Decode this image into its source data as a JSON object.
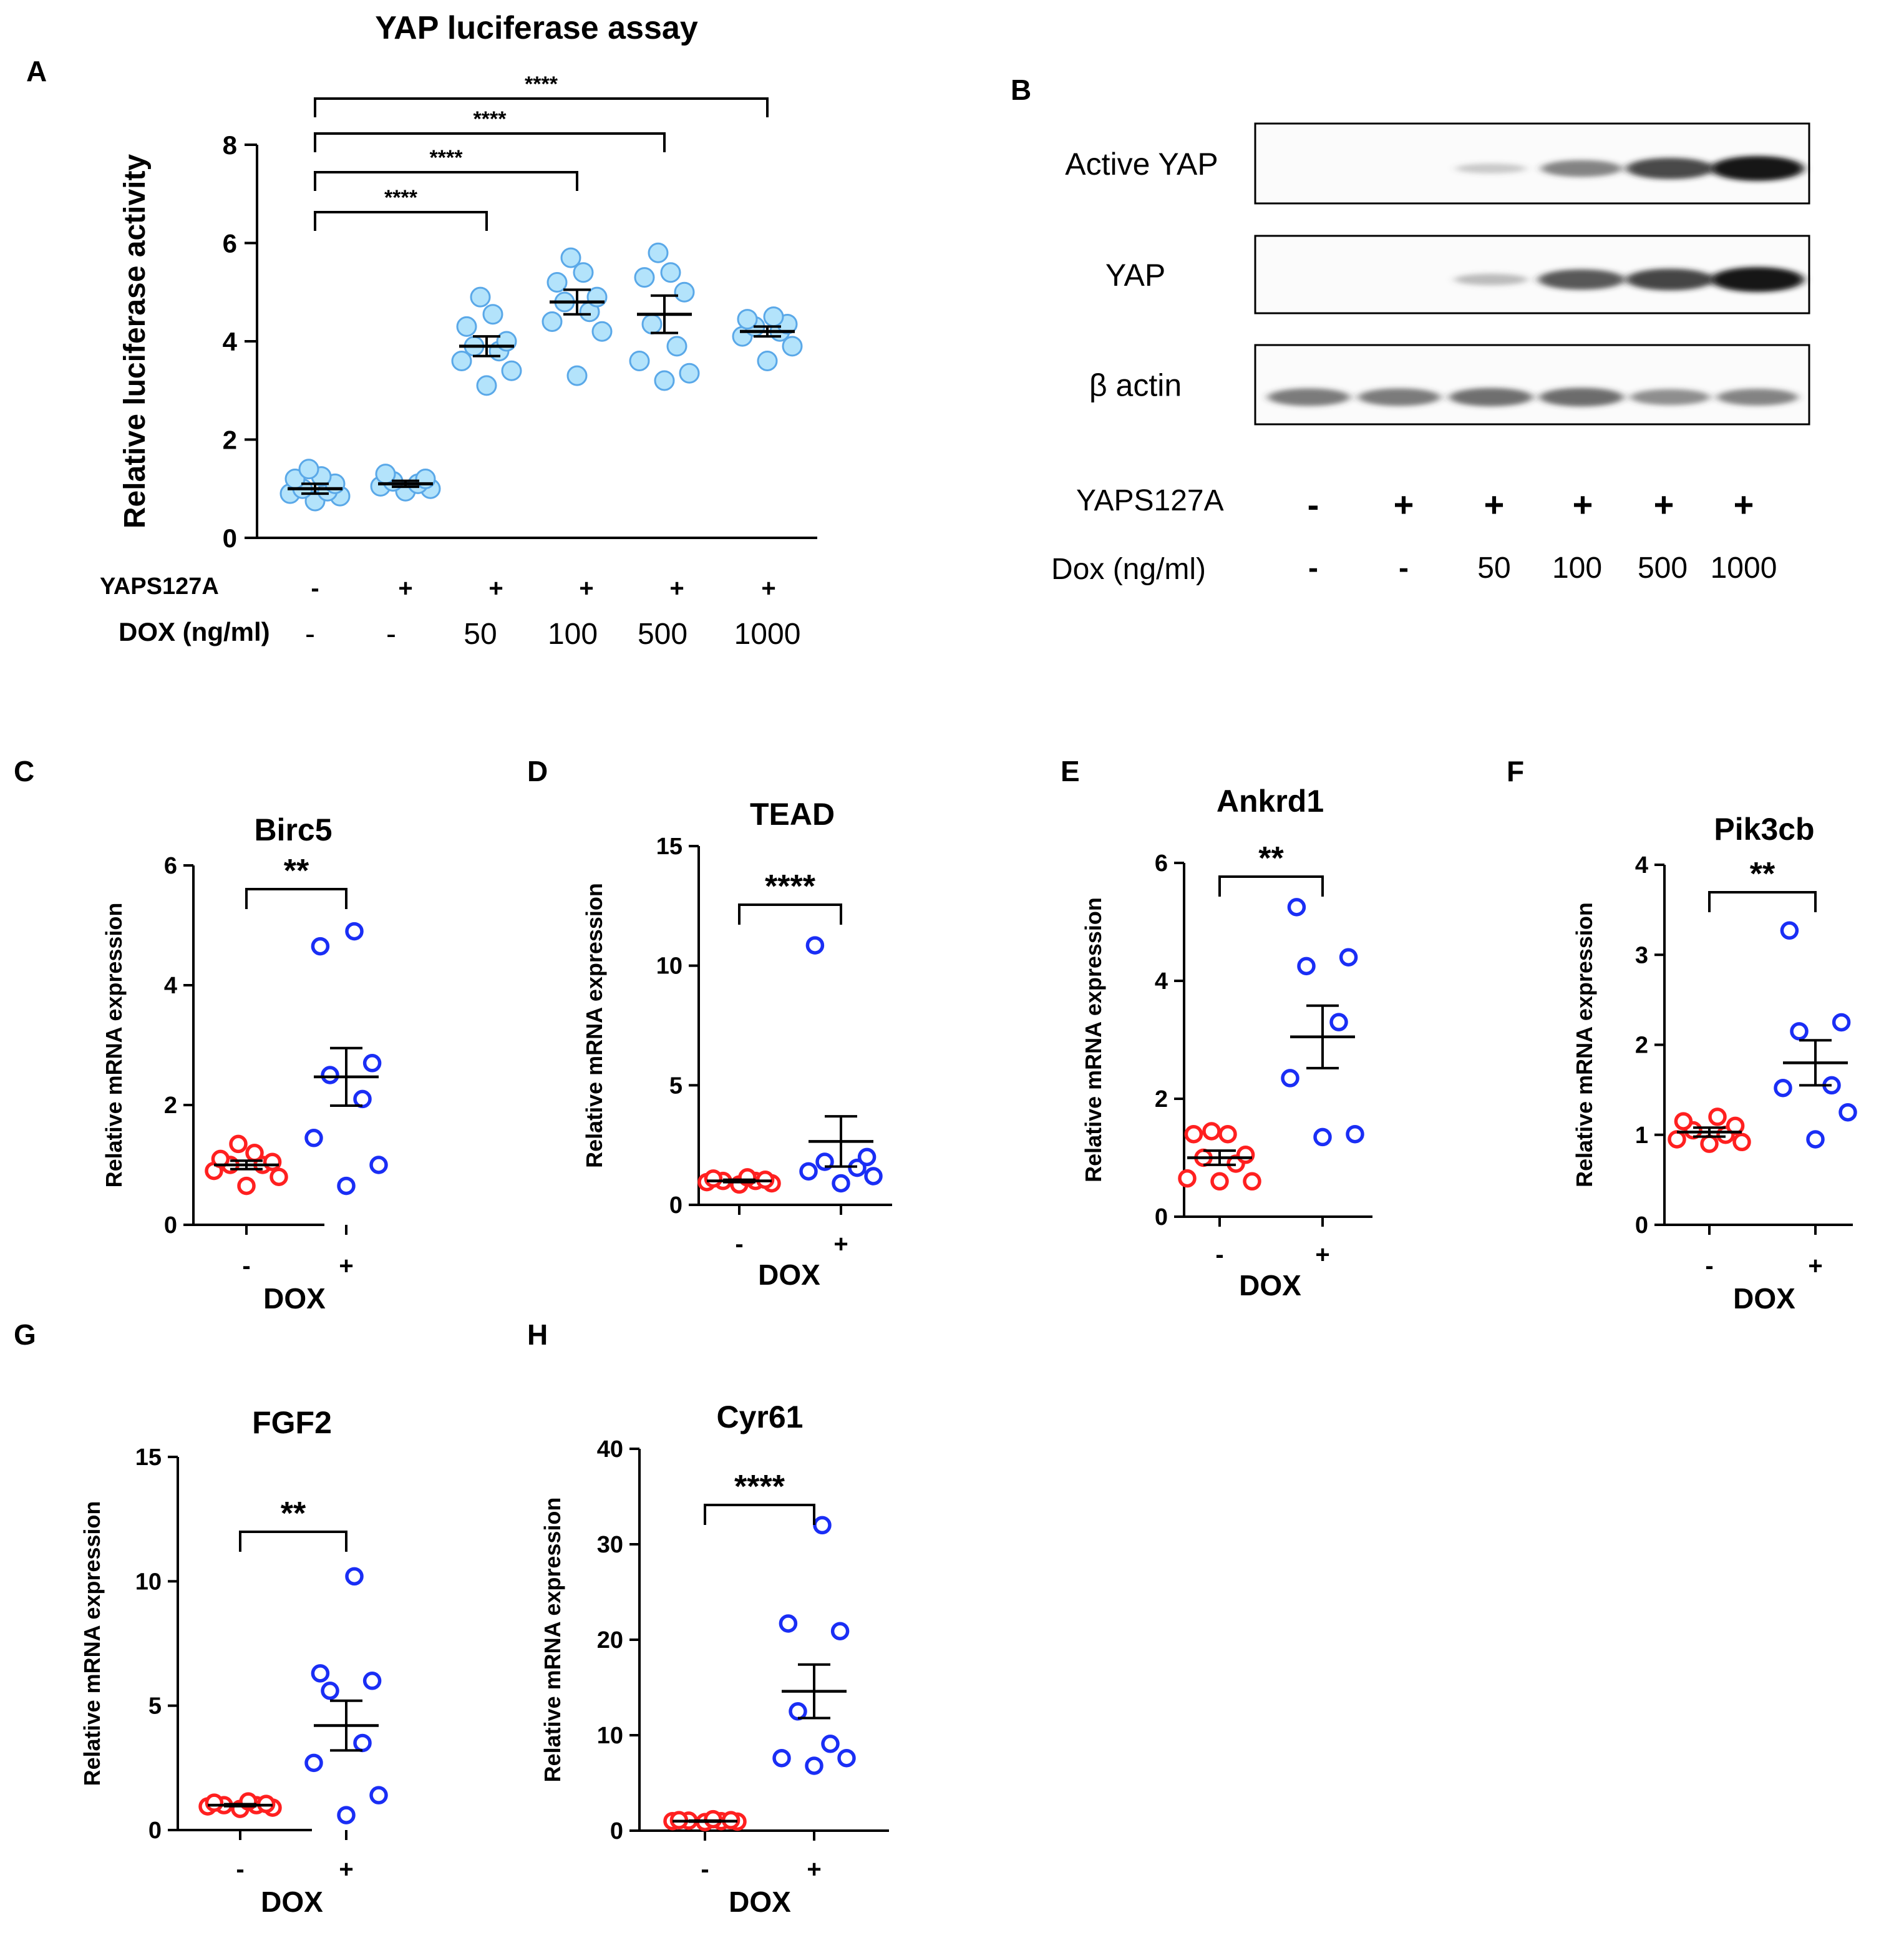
{
  "figure": {
    "panel_a_title": "YAP luciferase assay",
    "panel_labels": [
      "A",
      "B",
      "C",
      "D",
      "E",
      "F",
      "G",
      "H"
    ]
  },
  "panel_b": {
    "bands": [
      "Active YAP",
      "YAP",
      "β actin"
    ],
    "row1_label": "YAPS127A",
    "row1_values": [
      "-",
      "+",
      "+",
      "+",
      "+",
      "+"
    ],
    "row2_label": "Dox (ng/ml)",
    "row2_values": [
      "-",
      "-",
      "50",
      "100",
      "500",
      "1000"
    ],
    "intensities": {
      "Active YAP": [
        0,
        0,
        0.08,
        0.5,
        0.78,
        1.0
      ],
      "YAP": [
        0,
        0,
        0.18,
        0.72,
        0.8,
        1.0
      ],
      "β actin": [
        0.55,
        0.55,
        0.6,
        0.62,
        0.45,
        0.5
      ]
    }
  },
  "chart_data": [
    {
      "id": "A",
      "type": "scatter",
      "title": "YAP luciferase assay",
      "ylabel": "Relative luciferase activity",
      "ylim": [
        0,
        8
      ],
      "yticks": [
        0,
        2,
        4,
        6,
        8
      ],
      "row1_label": "YAPS127A",
      "row1": [
        "-",
        "+",
        "+",
        "+",
        "+",
        "+"
      ],
      "row2_label": "DOX (ng/ml)",
      "row2": [
        "-",
        "-",
        "50",
        "100",
        "500",
        "1000"
      ],
      "groups": [
        {
          "mean": 1.0,
          "sem": 0.1,
          "points": [
            0.75,
            0.85,
            0.9,
            0.95,
            1.0,
            1.1,
            1.2,
            1.25,
            1.4
          ]
        },
        {
          "mean": 1.1,
          "sem": 0.06,
          "points": [
            0.95,
            1.0,
            1.05,
            1.1,
            1.15,
            1.2,
            1.3
          ]
        },
        {
          "mean": 3.9,
          "sem": 0.2,
          "points": [
            3.1,
            3.4,
            3.6,
            3.8,
            3.9,
            4.0,
            4.3,
            4.55,
            4.9
          ]
        },
        {
          "mean": 4.8,
          "sem": 0.25,
          "points": [
            3.3,
            4.2,
            4.4,
            4.6,
            4.8,
            4.9,
            5.2,
            5.4,
            5.7
          ]
        },
        {
          "mean": 4.55,
          "sem": 0.38,
          "points": [
            3.2,
            3.35,
            3.6,
            3.9,
            4.35,
            5.0,
            5.3,
            5.4,
            5.8
          ]
        },
        {
          "mean": 4.2,
          "sem": 0.1,
          "points": [
            3.6,
            3.9,
            4.1,
            4.2,
            4.3,
            4.35,
            4.45,
            4.5
          ]
        }
      ],
      "comparisons": [
        {
          "from": 0,
          "to": 2,
          "label": "****"
        },
        {
          "from": 0,
          "to": 3,
          "label": "****"
        },
        {
          "from": 0,
          "to": 4,
          "label": "****"
        },
        {
          "from": 0,
          "to": 5,
          "label": "****"
        }
      ]
    },
    {
      "id": "C",
      "type": "scatter",
      "title": "Birc5",
      "ylabel": "Relative mRNA expression",
      "xlabel": "DOX",
      "ylim": [
        0,
        6
      ],
      "yticks": [
        0,
        2,
        4,
        6
      ],
      "categories": [
        "-",
        "+"
      ],
      "sig": "**",
      "groups": [
        {
          "mean": 1.0,
          "sem": 0.07,
          "points": [
            0.65,
            0.8,
            0.9,
            1.0,
            1.0,
            1.05,
            1.1,
            1.2,
            1.35
          ]
        },
        {
          "mean": 2.47,
          "sem": 0.48,
          "points": [
            0.65,
            1.0,
            1.45,
            2.1,
            2.5,
            2.7,
            4.65,
            4.9
          ]
        }
      ]
    },
    {
      "id": "D",
      "type": "scatter",
      "title": "TEAD",
      "ylabel": "Relative mRNA expression",
      "xlabel": "DOX",
      "ylim": [
        0,
        15
      ],
      "yticks": [
        0,
        5,
        10,
        15
      ],
      "categories": [
        "-",
        "+"
      ],
      "sig": "****",
      "groups": [
        {
          "mean": 1.0,
          "sem": 0.05,
          "points": [
            0.85,
            0.9,
            0.95,
            1.0,
            1.0,
            1.05,
            1.1,
            1.15
          ]
        },
        {
          "mean": 2.65,
          "sem": 1.05,
          "points": [
            0.9,
            1.2,
            1.4,
            1.55,
            1.8,
            2.0,
            10.85
          ]
        }
      ]
    },
    {
      "id": "E",
      "type": "scatter",
      "title": "Ankrd1",
      "ylabel": "Relative mRNA expression",
      "xlabel": "DOX",
      "ylim": [
        0,
        6
      ],
      "yticks": [
        0,
        2,
        4,
        6
      ],
      "categories": [
        "-",
        "+"
      ],
      "sig": "**",
      "groups": [
        {
          "mean": 1.0,
          "sem": 0.12,
          "points": [
            0.6,
            0.6,
            0.65,
            0.9,
            1.0,
            1.05,
            1.4,
            1.4,
            1.45
          ]
        },
        {
          "mean": 3.05,
          "sem": 0.53,
          "points": [
            1.35,
            1.4,
            2.35,
            3.3,
            4.25,
            4.4,
            5.25
          ]
        }
      ]
    },
    {
      "id": "F",
      "type": "scatter",
      "title": "Pik3cb",
      "ylabel": "Relative mRNA expression",
      "xlabel": "DOX",
      "ylim": [
        0,
        4
      ],
      "yticks": [
        0,
        1,
        2,
        3,
        4
      ],
      "categories": [
        "-",
        "+"
      ],
      "sig": "**",
      "groups": [
        {
          "mean": 1.03,
          "sem": 0.05,
          "points": [
            0.9,
            0.92,
            0.95,
            1.0,
            1.05,
            1.1,
            1.15,
            1.2
          ]
        },
        {
          "mean": 1.8,
          "sem": 0.25,
          "points": [
            0.95,
            1.25,
            1.52,
            1.55,
            2.15,
            2.25,
            3.27
          ]
        }
      ]
    },
    {
      "id": "G",
      "type": "scatter",
      "title": "FGF2",
      "ylabel": "Relative mRNA expression",
      "xlabel": "DOX",
      "ylim": [
        0,
        15
      ],
      "yticks": [
        0,
        5,
        10,
        15
      ],
      "categories": [
        "-",
        "+"
      ],
      "sig": "**",
      "groups": [
        {
          "mean": 1.0,
          "sem": 0.04,
          "points": [
            0.85,
            0.9,
            0.95,
            1.0,
            1.0,
            1.05,
            1.1,
            1.15
          ]
        },
        {
          "mean": 4.2,
          "sem": 1.0,
          "points": [
            0.6,
            1.4,
            2.7,
            3.5,
            5.6,
            6.0,
            6.3,
            10.2
          ]
        }
      ]
    },
    {
      "id": "H",
      "type": "scatter",
      "title": "Cyr61",
      "ylabel": "Relative mRNA expression",
      "xlabel": "DOX",
      "ylim": [
        0,
        40
      ],
      "yticks": [
        0,
        10,
        20,
        30,
        40
      ],
      "categories": [
        "-",
        "+"
      ],
      "sig": "****",
      "groups": [
        {
          "mean": 1.0,
          "sem": 0.05,
          "points": [
            0.9,
            0.95,
            1.0,
            1.0,
            1.05,
            1.1,
            1.1,
            1.2
          ]
        },
        {
          "mean": 14.6,
          "sem": 2.8,
          "points": [
            6.8,
            7.6,
            7.6,
            9.1,
            12.5,
            20.9,
            21.7,
            32.0
          ]
        }
      ]
    }
  ]
}
